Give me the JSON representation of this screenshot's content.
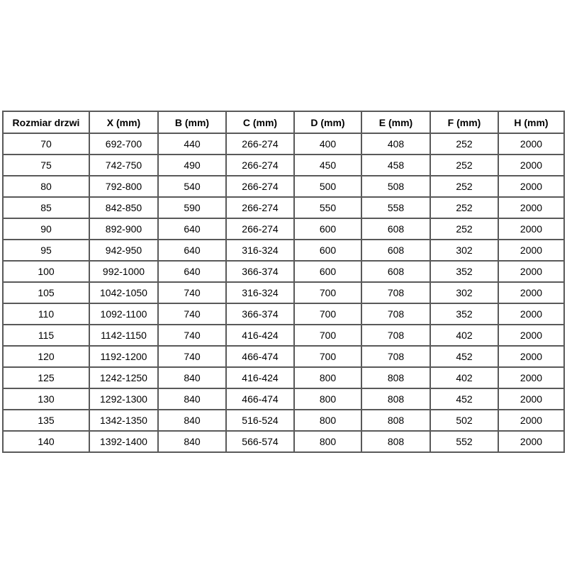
{
  "chart_data": {
    "type": "table",
    "columns": [
      "Rozmiar drzwi",
      "X (mm)",
      "B (mm)",
      "C (mm)",
      "D (mm)",
      "E (mm)",
      "F (mm)",
      "H (mm)"
    ],
    "rows": [
      [
        "70",
        "692-700",
        "440",
        "266-274",
        "400",
        "408",
        "252",
        "2000"
      ],
      [
        "75",
        "742-750",
        "490",
        "266-274",
        "450",
        "458",
        "252",
        "2000"
      ],
      [
        "80",
        "792-800",
        "540",
        "266-274",
        "500",
        "508",
        "252",
        "2000"
      ],
      [
        "85",
        "842-850",
        "590",
        "266-274",
        "550",
        "558",
        "252",
        "2000"
      ],
      [
        "90",
        "892-900",
        "640",
        "266-274",
        "600",
        "608",
        "252",
        "2000"
      ],
      [
        "95",
        "942-950",
        "640",
        "316-324",
        "600",
        "608",
        "302",
        "2000"
      ],
      [
        "100",
        "992-1000",
        "640",
        "366-374",
        "600",
        "608",
        "352",
        "2000"
      ],
      [
        "105",
        "1042-1050",
        "740",
        "316-324",
        "700",
        "708",
        "302",
        "2000"
      ],
      [
        "110",
        "1092-1100",
        "740",
        "366-374",
        "700",
        "708",
        "352",
        "2000"
      ],
      [
        "115",
        "1142-1150",
        "740",
        "416-424",
        "700",
        "708",
        "402",
        "2000"
      ],
      [
        "120",
        "1192-1200",
        "740",
        "466-474",
        "700",
        "708",
        "452",
        "2000"
      ],
      [
        "125",
        "1242-1250",
        "840",
        "416-424",
        "800",
        "808",
        "402",
        "2000"
      ],
      [
        "130",
        "1292-1300",
        "840",
        "466-474",
        "800",
        "808",
        "452",
        "2000"
      ],
      [
        "135",
        "1342-1350",
        "840",
        "516-524",
        "800",
        "808",
        "502",
        "2000"
      ],
      [
        "140",
        "1392-1400",
        "840",
        "566-574",
        "800",
        "808",
        "552",
        "2000"
      ]
    ],
    "layout": {
      "grid": true,
      "header_bold": true,
      "cell_alignment": "center"
    }
  },
  "colors": {
    "border": "#595959",
    "text": "#000000",
    "background": "#ffffff"
  }
}
